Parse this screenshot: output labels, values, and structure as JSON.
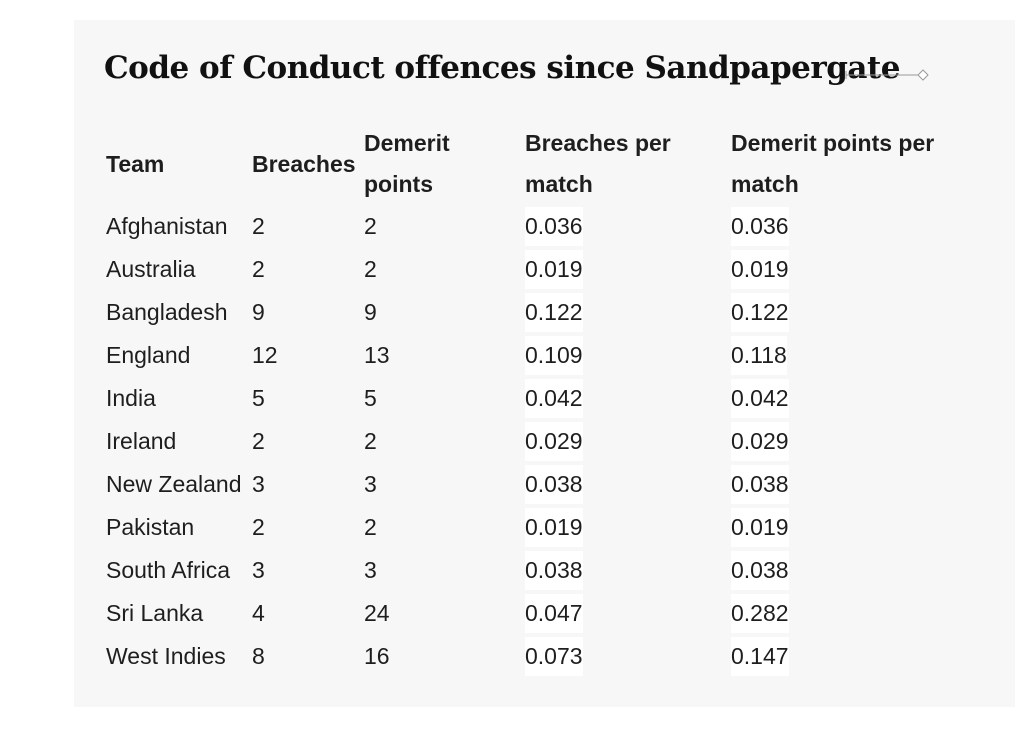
{
  "title": "Code of Conduct offences since Sandpapergate",
  "table": {
    "headers": [
      "Team",
      "Breaches",
      "Demerit points",
      "Breaches per match",
      "Demerit points per match"
    ],
    "rows": [
      [
        "Afghanistan",
        "2",
        "2",
        "0.036",
        "0.036"
      ],
      [
        "Australia",
        "2",
        "2",
        "0.019",
        "0.019"
      ],
      [
        "Bangladesh",
        "9",
        "9",
        "0.122",
        "0.122"
      ],
      [
        "England",
        "12",
        "13",
        "0.109",
        "0.118"
      ],
      [
        "India",
        "5",
        "5",
        "0.042",
        "0.042"
      ],
      [
        "Ireland",
        "2",
        "2",
        "0.029",
        "0.029"
      ],
      [
        "New Zealand",
        "3",
        "3",
        "0.038",
        "0.038"
      ],
      [
        "Pakistan",
        "2",
        "2",
        "0.019",
        "0.019"
      ],
      [
        "South Africa",
        "3",
        "3",
        "0.038",
        "0.038"
      ],
      [
        "Sri Lanka",
        "4",
        "24",
        "0.047",
        "0.282"
      ],
      [
        "West Indies",
        "8",
        "16",
        "0.073",
        "0.147"
      ]
    ]
  },
  "colors": {
    "panel_background": "#f7f7f7",
    "highlight_background": "#ffffff",
    "text": "#1e1e1e"
  },
  "icons": {
    "scroll_hint": "slider-line-icon"
  }
}
